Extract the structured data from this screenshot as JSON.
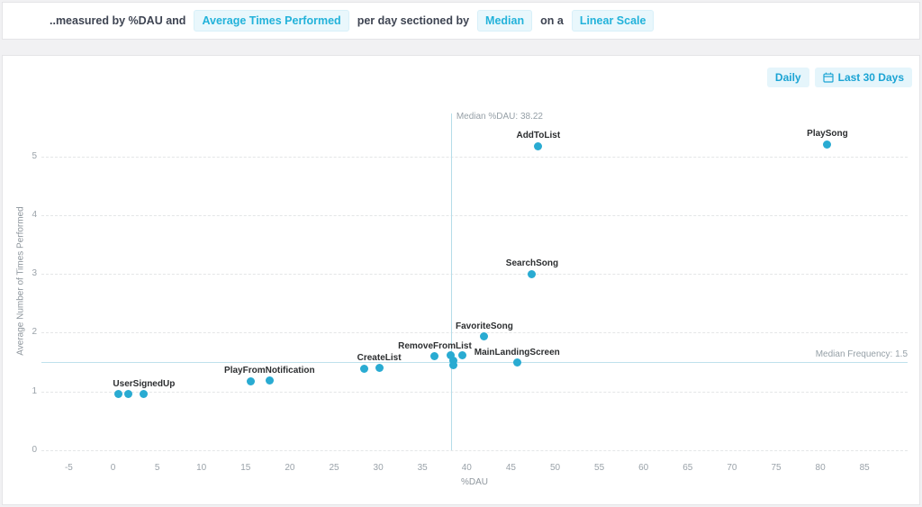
{
  "header": {
    "prefix": "..measured by %DAU and",
    "metric_pill": "Average Times Performed",
    "sectioned_text": "per day sectioned by",
    "section_pill": "Median",
    "scale_text": "on a",
    "scale_pill": "Linear Scale"
  },
  "toolbar": {
    "interval_label": "Daily",
    "range_label": "Last 30 Days",
    "range_icon": "calendar-icon"
  },
  "colors": {
    "accent": "#22b2da",
    "pill_bg": "#e9f7fc",
    "dot": "#29abd2",
    "median_line": "#b5dde9",
    "grid": "#e4e6e7",
    "tick_text": "#9aa2a9",
    "point_label_text": "#2c2e30"
  },
  "chart_data": {
    "type": "scatter",
    "xlabel": "%DAU",
    "ylabel": "Average Number of Times Performed",
    "x_ticks": [
      -5,
      0,
      5,
      10,
      15,
      20,
      25,
      30,
      35,
      40,
      45,
      50,
      55,
      60,
      65,
      70,
      75,
      80,
      85
    ],
    "y_ticks": [
      0,
      1,
      2,
      3,
      4,
      5
    ],
    "xlim": [
      -8,
      90
    ],
    "ylim": [
      0,
      5.8
    ],
    "grid": "horizontal-dashed",
    "legend": "none",
    "median_x": {
      "value": 38.22,
      "label": "Median %DAU: 38.22"
    },
    "median_y": {
      "value": 1.5,
      "label": "Median Frequency: 1.5"
    },
    "points": [
      {
        "x": 0.6,
        "y": 0.95,
        "label": null
      },
      {
        "x": 1.7,
        "y": 0.95,
        "label": null
      },
      {
        "x": 3.5,
        "y": 0.95,
        "label": "UserSignedUp"
      },
      {
        "x": 15.6,
        "y": 1.17,
        "label": null
      },
      {
        "x": 17.7,
        "y": 1.18,
        "label": "PlayFromNotification"
      },
      {
        "x": 28.4,
        "y": 1.39,
        "label": null
      },
      {
        "x": 30.1,
        "y": 1.4,
        "label": "CreateList"
      },
      {
        "x": 36.4,
        "y": 1.6,
        "label": "RemoveFromList"
      },
      {
        "x": 38.2,
        "y": 1.62,
        "label": null
      },
      {
        "x": 38.5,
        "y": 1.53,
        "label": null
      },
      {
        "x": 38.5,
        "y": 1.45,
        "label": null
      },
      {
        "x": 39.5,
        "y": 1.61,
        "label": null
      },
      {
        "x": 42.0,
        "y": 1.93,
        "label": "FavoriteSong"
      },
      {
        "x": 45.7,
        "y": 1.49,
        "label": "MainLandingScreen"
      },
      {
        "x": 47.4,
        "y": 3.0,
        "label": "SearchSong"
      },
      {
        "x": 48.1,
        "y": 5.17,
        "label": "AddToList"
      },
      {
        "x": 80.8,
        "y": 5.2,
        "label": "PlaySong"
      }
    ]
  }
}
